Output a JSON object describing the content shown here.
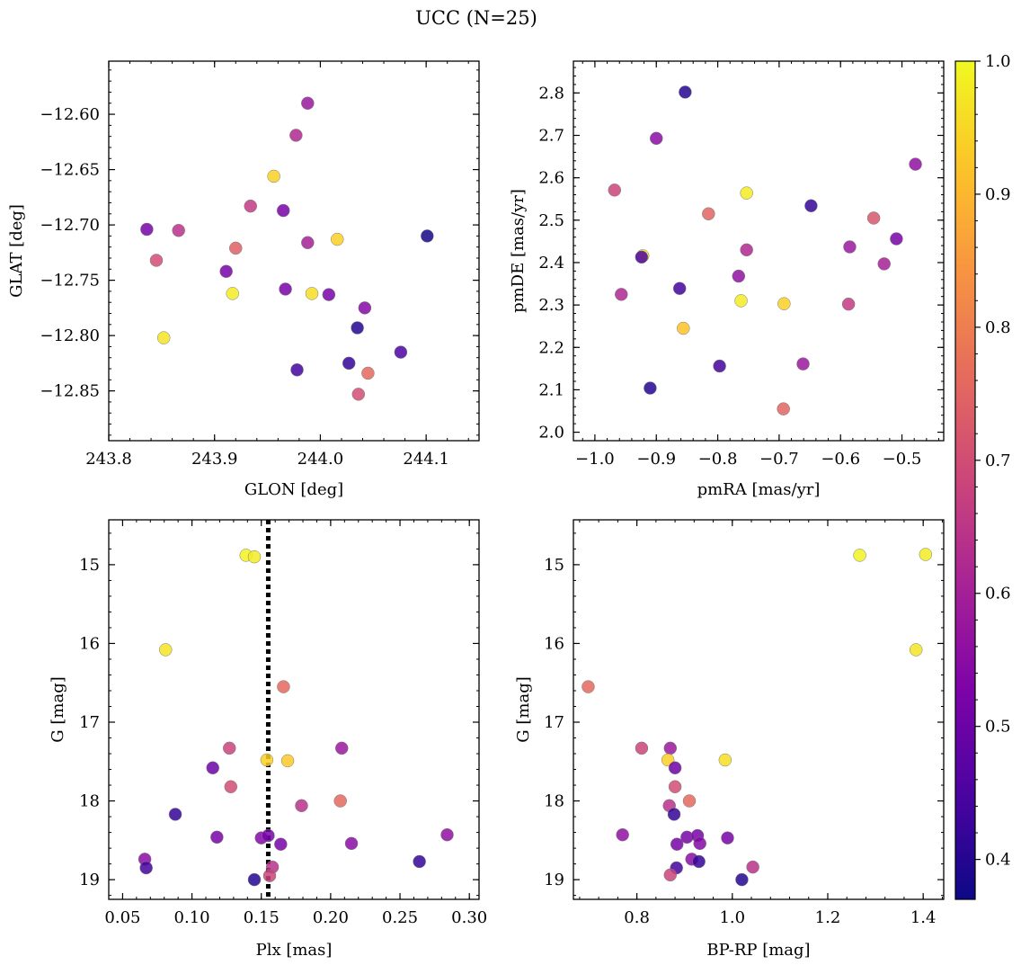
{
  "figure": {
    "title": "UCC (N=25)"
  },
  "colorbar": {
    "vmin": 0.37,
    "vmax": 1.0,
    "ticks": [
      0.4,
      0.5,
      0.6,
      0.7,
      0.8,
      0.9,
      1.0
    ],
    "tick_labels": [
      "0.4",
      "0.5",
      "0.6",
      "0.7",
      "0.8",
      "0.9",
      "1.0"
    ],
    "colormap": "plasma"
  },
  "chart_data": [
    {
      "type": "scatter",
      "xlabel": "GLON [deg]",
      "ylabel": "GLAT [deg]",
      "xlim": [
        243.8,
        244.15
      ],
      "ylim": [
        -12.895,
        -12.552
      ],
      "y_inverted": false,
      "xticks": [
        243.8,
        243.9,
        244.0,
        244.1
      ],
      "xtick_labels": [
        "243.8",
        "243.9",
        "244.0",
        "244.1"
      ],
      "yticks": [
        -12.6,
        -12.65,
        -12.7,
        -12.75,
        -12.8,
        -12.85
      ],
      "ytick_labels": [
        "−12.60",
        "−12.65",
        "−12.70",
        "−12.75",
        "−12.80",
        "−12.85"
      ],
      "points": [
        {
          "x": 243.988,
          "y": -12.59,
          "c": 0.58
        },
        {
          "x": 243.977,
          "y": -12.619,
          "c": 0.62
        },
        {
          "x": 243.956,
          "y": -12.656,
          "c": 0.94
        },
        {
          "x": 243.934,
          "y": -12.683,
          "c": 0.66
        },
        {
          "x": 243.965,
          "y": -12.687,
          "c": 0.52
        },
        {
          "x": 243.836,
          "y": -12.704,
          "c": 0.52
        },
        {
          "x": 243.866,
          "y": -12.705,
          "c": 0.64
        },
        {
          "x": 244.016,
          "y": -12.713,
          "c": 0.94
        },
        {
          "x": 244.101,
          "y": -12.71,
          "c": 0.38
        },
        {
          "x": 243.988,
          "y": -12.716,
          "c": 0.6
        },
        {
          "x": 243.92,
          "y": -12.721,
          "c": 0.74
        },
        {
          "x": 243.845,
          "y": -12.732,
          "c": 0.7
        },
        {
          "x": 243.911,
          "y": -12.742,
          "c": 0.52
        },
        {
          "x": 243.917,
          "y": -12.762,
          "c": 0.98
        },
        {
          "x": 243.967,
          "y": -12.758,
          "c": 0.52
        },
        {
          "x": 243.992,
          "y": -12.762,
          "c": 0.96
        },
        {
          "x": 244.008,
          "y": -12.763,
          "c": 0.52
        },
        {
          "x": 244.042,
          "y": -12.775,
          "c": 0.54
        },
        {
          "x": 244.035,
          "y": -12.793,
          "c": 0.4
        },
        {
          "x": 243.852,
          "y": -12.802,
          "c": 0.97
        },
        {
          "x": 244.076,
          "y": -12.815,
          "c": 0.45
        },
        {
          "x": 244.027,
          "y": -12.825,
          "c": 0.42
        },
        {
          "x": 243.978,
          "y": -12.831,
          "c": 0.44
        },
        {
          "x": 244.045,
          "y": -12.834,
          "c": 0.76
        },
        {
          "x": 244.036,
          "y": -12.853,
          "c": 0.7
        }
      ]
    },
    {
      "type": "scatter",
      "xlabel": "pmRA [mas/yr]",
      "ylabel": "pmDE [mas/yr]",
      "xlim": [
        -1.035,
        -0.432
      ],
      "ylim": [
        1.98,
        2.875
      ],
      "y_inverted": false,
      "xticks": [
        -1.0,
        -0.9,
        -0.8,
        -0.7,
        -0.6,
        -0.5
      ],
      "xtick_labels": [
        "−1.0",
        "−0.9",
        "−0.8",
        "−0.7",
        "−0.6",
        "−0.5"
      ],
      "yticks": [
        2.0,
        2.1,
        2.2,
        2.3,
        2.4,
        2.5,
        2.6,
        2.7,
        2.8
      ],
      "ytick_labels": [
        "2.0",
        "2.1",
        "2.2",
        "2.3",
        "2.4",
        "2.5",
        "2.6",
        "2.7",
        "2.8"
      ],
      "points": [
        {
          "x": -0.853,
          "y": 2.802,
          "c": 0.4
        },
        {
          "x": -0.9,
          "y": 2.693,
          "c": 0.55
        },
        {
          "x": -0.478,
          "y": 2.632,
          "c": 0.56
        },
        {
          "x": -0.968,
          "y": 2.571,
          "c": 0.68
        },
        {
          "x": -0.753,
          "y": 2.564,
          "c": 0.98
        },
        {
          "x": -0.648,
          "y": 2.534,
          "c": 0.42
        },
        {
          "x": -0.815,
          "y": 2.515,
          "c": 0.75
        },
        {
          "x": -0.546,
          "y": 2.505,
          "c": 0.72
        },
        {
          "x": -0.509,
          "y": 2.456,
          "c": 0.52
        },
        {
          "x": -0.585,
          "y": 2.437,
          "c": 0.58
        },
        {
          "x": -0.753,
          "y": 2.43,
          "c": 0.62
        },
        {
          "x": -0.922,
          "y": 2.416,
          "c": 0.97
        },
        {
          "x": -0.924,
          "y": 2.413,
          "c": 0.45
        },
        {
          "x": -0.529,
          "y": 2.397,
          "c": 0.6
        },
        {
          "x": -0.766,
          "y": 2.368,
          "c": 0.56
        },
        {
          "x": -0.862,
          "y": 2.339,
          "c": 0.44
        },
        {
          "x": -0.957,
          "y": 2.325,
          "c": 0.62
        },
        {
          "x": -0.762,
          "y": 2.31,
          "c": 0.98
        },
        {
          "x": -0.692,
          "y": 2.303,
          "c": 0.94
        },
        {
          "x": -0.587,
          "y": 2.302,
          "c": 0.66
        },
        {
          "x": -0.856,
          "y": 2.245,
          "c": 0.92
        },
        {
          "x": -0.661,
          "y": 2.161,
          "c": 0.58
        },
        {
          "x": -0.797,
          "y": 2.156,
          "c": 0.44
        },
        {
          "x": -0.91,
          "y": 2.104,
          "c": 0.4
        },
        {
          "x": -0.693,
          "y": 2.055,
          "c": 0.75
        }
      ]
    },
    {
      "type": "scatter",
      "xlabel": "Plx [mas]",
      "ylabel": "G [mag]",
      "xlim": [
        0.04,
        0.307
      ],
      "ylim": [
        19.25,
        14.43
      ],
      "y_inverted": true,
      "xticks": [
        0.05,
        0.1,
        0.15,
        0.2,
        0.25,
        0.3
      ],
      "xtick_labels": [
        "0.05",
        "0.10",
        "0.15",
        "0.20",
        "0.25",
        "0.30"
      ],
      "yticks": [
        15,
        16,
        17,
        18,
        19
      ],
      "ytick_labels": [
        "15",
        "16",
        "17",
        "18",
        "19"
      ],
      "reference_line": {
        "x": 0.155,
        "style": "dotted"
      },
      "points": [
        {
          "x": 0.139,
          "y": 14.88,
          "c": 0.99
        },
        {
          "x": 0.145,
          "y": 14.9,
          "c": 0.98
        },
        {
          "x": 0.081,
          "y": 16.08,
          "c": 0.97
        },
        {
          "x": 0.166,
          "y": 16.55,
          "c": 0.76
        },
        {
          "x": 0.127,
          "y": 17.33,
          "c": 0.68
        },
        {
          "x": 0.208,
          "y": 17.33,
          "c": 0.58
        },
        {
          "x": 0.154,
          "y": 17.48,
          "c": 0.94
        },
        {
          "x": 0.169,
          "y": 17.49,
          "c": 0.93
        },
        {
          "x": 0.115,
          "y": 17.58,
          "c": 0.5
        },
        {
          "x": 0.128,
          "y": 17.82,
          "c": 0.7
        },
        {
          "x": 0.207,
          "y": 18.0,
          "c": 0.76
        },
        {
          "x": 0.179,
          "y": 18.06,
          "c": 0.64
        },
        {
          "x": 0.088,
          "y": 18.17,
          "c": 0.42
        },
        {
          "x": 0.284,
          "y": 18.43,
          "c": 0.56
        },
        {
          "x": 0.118,
          "y": 18.46,
          "c": 0.52
        },
        {
          "x": 0.15,
          "y": 18.47,
          "c": 0.54
        },
        {
          "x": 0.155,
          "y": 18.44,
          "c": 0.52
        },
        {
          "x": 0.164,
          "y": 18.55,
          "c": 0.52
        },
        {
          "x": 0.215,
          "y": 18.54,
          "c": 0.55
        },
        {
          "x": 0.066,
          "y": 18.74,
          "c": 0.55
        },
        {
          "x": 0.264,
          "y": 18.77,
          "c": 0.42
        },
        {
          "x": 0.067,
          "y": 18.85,
          "c": 0.44
        },
        {
          "x": 0.158,
          "y": 18.84,
          "c": 0.64
        },
        {
          "x": 0.156,
          "y": 18.95,
          "c": 0.68
        },
        {
          "x": 0.145,
          "y": 19.0,
          "c": 0.4
        }
      ]
    },
    {
      "type": "scatter",
      "xlabel": "BP-RP [mag]",
      "ylabel": "G [mag]",
      "xlim": [
        0.667,
        1.443
      ],
      "ylim": [
        19.25,
        14.43
      ],
      "y_inverted": true,
      "xticks": [
        0.8,
        1.0,
        1.2,
        1.4
      ],
      "xtick_labels": [
        "0.8",
        "1.0",
        "1.2",
        "1.4"
      ],
      "yticks": [
        15,
        16,
        17,
        18,
        19
      ],
      "ytick_labels": [
        "15",
        "16",
        "17",
        "18",
        "19"
      ],
      "points": [
        {
          "x": 1.267,
          "y": 14.88,
          "c": 0.99
        },
        {
          "x": 1.405,
          "y": 14.87,
          "c": 0.98
        },
        {
          "x": 1.385,
          "y": 16.08,
          "c": 0.97
        },
        {
          "x": 0.698,
          "y": 16.55,
          "c": 0.76
        },
        {
          "x": 0.81,
          "y": 17.33,
          "c": 0.68
        },
        {
          "x": 0.87,
          "y": 17.33,
          "c": 0.58
        },
        {
          "x": 0.865,
          "y": 17.48,
          "c": 0.94
        },
        {
          "x": 0.985,
          "y": 17.48,
          "c": 0.96
        },
        {
          "x": 0.88,
          "y": 17.58,
          "c": 0.5
        },
        {
          "x": 0.88,
          "y": 17.82,
          "c": 0.7
        },
        {
          "x": 0.91,
          "y": 18.0,
          "c": 0.76
        },
        {
          "x": 0.868,
          "y": 18.06,
          "c": 0.64
        },
        {
          "x": 0.878,
          "y": 18.17,
          "c": 0.42
        },
        {
          "x": 0.77,
          "y": 18.43,
          "c": 0.56
        },
        {
          "x": 0.905,
          "y": 18.46,
          "c": 0.52
        },
        {
          "x": 0.927,
          "y": 18.44,
          "c": 0.52
        },
        {
          "x": 0.932,
          "y": 18.54,
          "c": 0.54
        },
        {
          "x": 0.884,
          "y": 18.55,
          "c": 0.52
        },
        {
          "x": 0.99,
          "y": 18.47,
          "c": 0.52
        },
        {
          "x": 0.915,
          "y": 18.74,
          "c": 0.55
        },
        {
          "x": 0.93,
          "y": 18.77,
          "c": 0.42
        },
        {
          "x": 0.883,
          "y": 18.85,
          "c": 0.44
        },
        {
          "x": 1.043,
          "y": 18.84,
          "c": 0.64
        },
        {
          "x": 0.87,
          "y": 18.94,
          "c": 0.68
        },
        {
          "x": 1.02,
          "y": 19.0,
          "c": 0.4
        }
      ]
    }
  ]
}
